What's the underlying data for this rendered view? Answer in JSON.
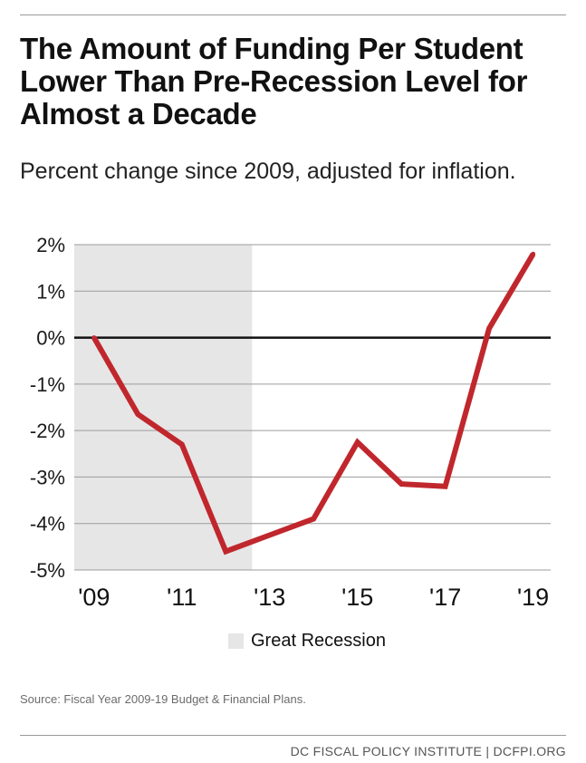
{
  "header": {
    "title": "The Amount of Funding Per Student Lower Than Pre-Recession Level for Almost a Decade",
    "subtitle": "Percent change since 2009, adjusted for inflation."
  },
  "legend": {
    "label": "Great Recession",
    "color": "#e6e6e6"
  },
  "source": "Source: Fiscal Year 2009-19 Budget & Financial Plans.",
  "footer": "DC FISCAL POLICY INSTITUTE | DCFPI.ORG",
  "chart_data": {
    "type": "line",
    "title": "The Amount of Funding Per Student Lower Than Pre-Recession Level for Almost a Decade",
    "subtitle": "Percent change since 2009, adjusted for inflation.",
    "x": [
      2009,
      2010,
      2011,
      2012,
      2013,
      2014,
      2015,
      2016,
      2017,
      2018,
      2019
    ],
    "series": [
      {
        "values": [
          0.0,
          -1.65,
          -2.3,
          -4.6,
          -4.25,
          -3.9,
          -2.25,
          -3.15,
          -3.2,
          0.2,
          1.8
        ],
        "color": "#c0272d"
      }
    ],
    "x_tick_values": [
      2009,
      2011,
      2013,
      2015,
      2017,
      2019
    ],
    "x_tick_labels": [
      "'09",
      "'11",
      "'13",
      "'15",
      "'17",
      "'19"
    ],
    "y_ticks": [
      2,
      1,
      0,
      -1,
      -2,
      -3,
      -4,
      -5
    ],
    "y_tick_labels": [
      "2%",
      "1%",
      "0%",
      "-1%",
      "-2%",
      "-3%",
      "-4%",
      "-5%"
    ],
    "ylim": [
      -5,
      2
    ],
    "xlim": [
      2008.55,
      2019.4
    ],
    "shaded_region": {
      "label": "Great Recession",
      "from": 2008.55,
      "to": 2012.6
    },
    "grid": true,
    "legend_position": "bottom"
  }
}
